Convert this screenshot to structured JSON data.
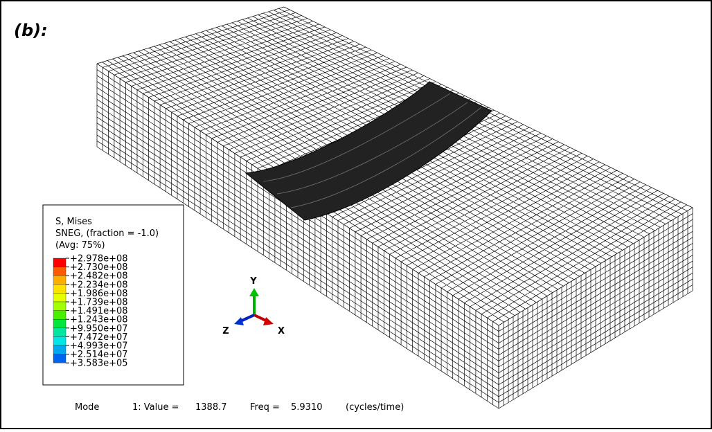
{
  "panel_label": "(b):",
  "legend": {
    "title": [
      "S, Mises",
      "SNEG, (fraction = -1.0)",
      "(Avg: 75%)"
    ],
    "labels": [
      "+2.978e+08",
      "+2.730e+08",
      "+2.482e+08",
      "+2.234e+08",
      "+1.986e+08",
      "+1.739e+08",
      "+1.491e+08",
      "+1.243e+08",
      "+9.950e+07",
      "+7.472e+07",
      "+4.993e+07",
      "+2.514e+07",
      "+3.583e+05"
    ],
    "colors": [
      "#ff0000",
      "#ff5a00",
      "#ffae00",
      "#ffe100",
      "#e6ff00",
      "#a0ff00",
      "#46f000",
      "#00e63c",
      "#00e6a0",
      "#00e6e6",
      "#00a8f0",
      "#0064f0",
      "#0000ff"
    ]
  },
  "triad": {
    "y": "Y",
    "z": "Z",
    "x": "X"
  },
  "status": {
    "mode": "Mode",
    "value_label": "1: Value =",
    "value": "1388.7",
    "freq_label": "Freq =",
    "freq": "5.9310",
    "unit": "(cycles/time)"
  }
}
